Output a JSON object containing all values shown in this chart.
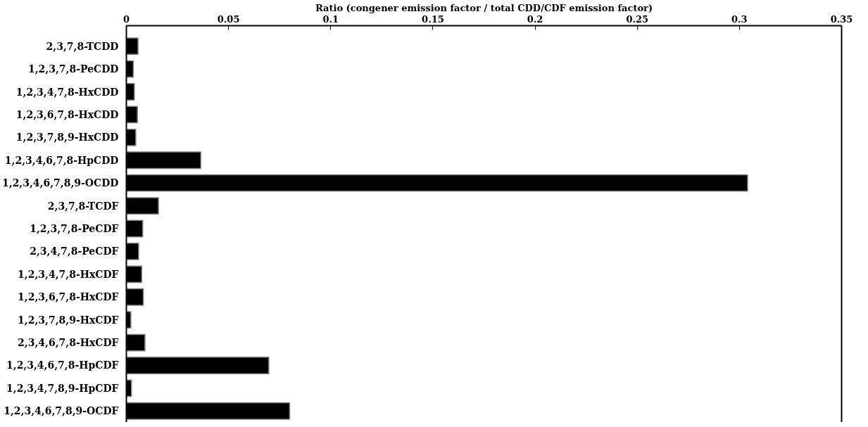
{
  "chart_data": {
    "type": "bar",
    "orientation": "horizontal",
    "xlabel": "Ratio (congener emission factor / total CDD/CDF emission factor)",
    "categories": [
      "2,3,7,8-TCDD",
      "1,2,3,7,8-PeCDD",
      "1,2,3,4,7,8-HxCDD",
      "1,2,3,6,7,8-HxCDD",
      "1,2,3,7,8,9-HxCDD",
      "1,2,3,4,6,7,8-HpCDD",
      "1,2,3,4,6,7,8,9-OCDD",
      "2,3,7,8-TCDF",
      "1,2,3,7,8-PeCDF",
      "2,3,4,7,8-PeCDF",
      "1,2,3,4,7,8-HxCDF",
      "1,2,3,6,7,8-HxCDF",
      "1,2,3,7,8,9-HxCDF",
      "2,3,4,6,7,8-HxCDF",
      "1,2,3,4,6,7,8-HpCDF",
      "1,2,3,4,7,8,9-HpCDF",
      "1,2,3,4,6,7,8,9-OCDF"
    ],
    "values": [
      0.0057,
      0.0034,
      0.0039,
      0.0054,
      0.0046,
      0.0364,
      0.304,
      0.0157,
      0.008,
      0.006,
      0.0075,
      0.0083,
      0.0022,
      0.0091,
      0.0697,
      0.0025,
      0.0799
    ],
    "color": "#000000",
    "xlim": [
      0,
      0.35
    ],
    "xticks": [
      0,
      0.05,
      0.1,
      0.15,
      0.2,
      0.25,
      0.3,
      0.35
    ],
    "grid": false
  }
}
